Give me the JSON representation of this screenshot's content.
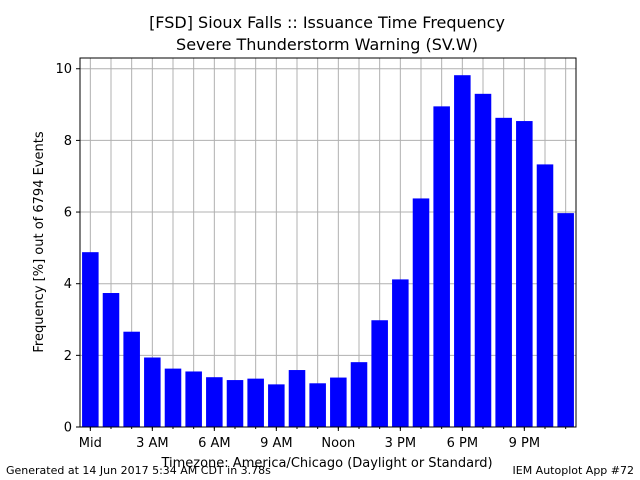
{
  "chart_data": {
    "type": "bar",
    "title": "[FSD] Sioux Falls :: Issuance Time Frequency",
    "subtitle": "Severe Thunderstorm Warning (SV.W)",
    "xlabel": "Timezone: America/Chicago (Daylight or Standard)",
    "ylabel": "Frequency [%] out of 6794 Events",
    "ylim": [
      0,
      10.3
    ],
    "yticks": [
      0,
      2,
      4,
      6,
      8,
      10
    ],
    "xlim": [
      -0.5,
      23.5
    ],
    "xticks": [
      {
        "hour": 0,
        "label": "Mid"
      },
      {
        "hour": 3,
        "label": "3 AM"
      },
      {
        "hour": 6,
        "label": "6 AM"
      },
      {
        "hour": 9,
        "label": "9 AM"
      },
      {
        "hour": 12,
        "label": "Noon"
      },
      {
        "hour": 15,
        "label": "3 PM"
      },
      {
        "hour": 18,
        "label": "6 PM"
      },
      {
        "hour": 21,
        "label": "9 PM"
      }
    ],
    "x": [
      0,
      1,
      2,
      3,
      4,
      5,
      6,
      7,
      8,
      9,
      10,
      11,
      12,
      13,
      14,
      15,
      16,
      17,
      18,
      19,
      20,
      21,
      22,
      23
    ],
    "values": [
      4.88,
      3.74,
      2.66,
      1.94,
      1.63,
      1.55,
      1.39,
      1.31,
      1.35,
      1.19,
      1.59,
      1.22,
      1.38,
      1.81,
      2.98,
      4.12,
      6.38,
      8.95,
      9.82,
      9.3,
      8.63,
      8.54,
      7.33,
      5.97
    ],
    "grid": true,
    "bar_color": "#0000ff"
  },
  "footer": {
    "left": "Generated at 14 Jun 2017 5:34 AM CDT in 3.78s",
    "right": "IEM Autoplot App #72"
  }
}
